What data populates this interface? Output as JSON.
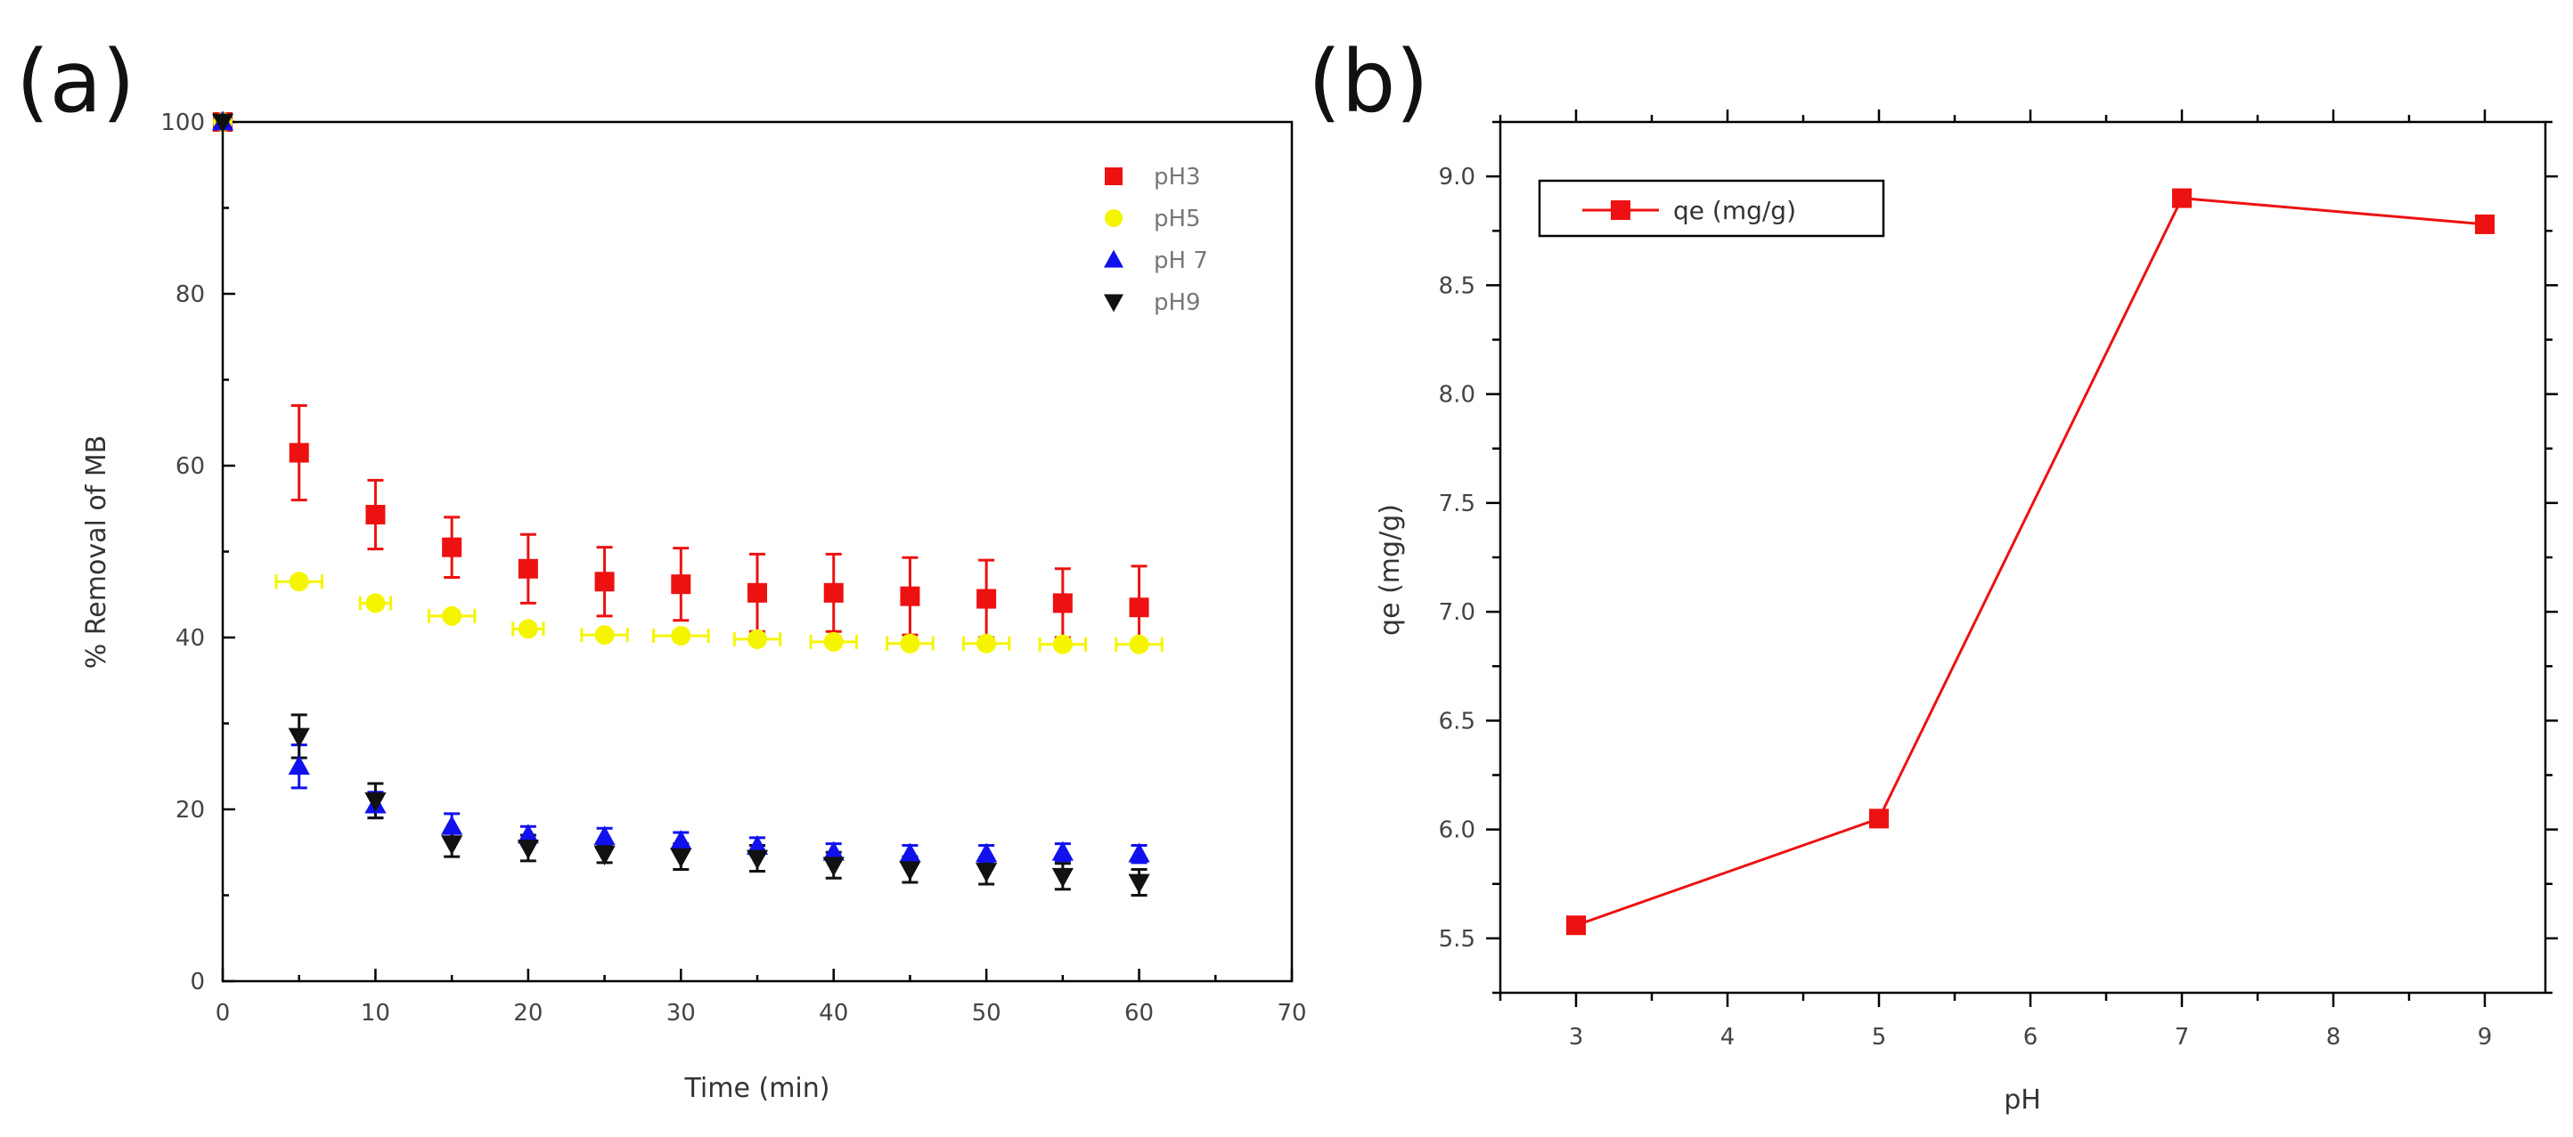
{
  "chart_data": [
    {
      "panel_label": "(a)",
      "type": "scatter",
      "xlabel": "Time (min)",
      "ylabel": "% Removal of MB",
      "xlim": [
        0,
        70
      ],
      "ylim": [
        0,
        100
      ],
      "xticks": [
        "0",
        "10",
        "20",
        "30",
        "40",
        "50",
        "60",
        "70"
      ],
      "yticks": [
        "0",
        "20",
        "40",
        "60",
        "80",
        "100"
      ],
      "x": [
        0,
        5,
        10,
        15,
        20,
        25,
        30,
        35,
        40,
        45,
        50,
        55,
        60
      ],
      "legend_position": "top-right",
      "series": [
        {
          "name": "pH3",
          "marker": "square",
          "color": "#ee1111",
          "values": [
            100,
            61.5,
            54.3,
            50.5,
            48.0,
            46.5,
            46.2,
            45.2,
            45.2,
            44.8,
            44.5,
            44.0,
            43.5
          ],
          "yerr": [
            0,
            5.5,
            4.0,
            3.5,
            4.0,
            4.0,
            4.2,
            4.5,
            4.5,
            4.5,
            4.5,
            4.0,
            4.8
          ]
        },
        {
          "name": "pH5",
          "marker": "circle",
          "color": "#f5f500",
          "values": [
            100,
            46.5,
            44.0,
            42.5,
            41.0,
            40.3,
            40.2,
            39.8,
            39.5,
            39.3,
            39.3,
            39.2,
            39.2
          ],
          "xerr": [
            0,
            1.5,
            1.0,
            1.5,
            1.0,
            1.5,
            1.8,
            1.5,
            1.5,
            1.5,
            1.5,
            1.5,
            1.5
          ]
        },
        {
          "name": "pH 7",
          "marker": "triangle-up",
          "color": "#1111ee",
          "values": [
            100,
            25.0,
            20.5,
            18.0,
            17.0,
            16.8,
            16.3,
            15.7,
            15.0,
            14.8,
            14.8,
            15.0,
            14.8
          ],
          "yerr": [
            0,
            2.5,
            1.5,
            1.5,
            1.0,
            1.0,
            1.0,
            1.0,
            1.0,
            1.0,
            1.0,
            1.0,
            1.0
          ]
        },
        {
          "name": "pH9",
          "marker": "triangle-down",
          "color": "#111111",
          "values": [
            100,
            28.5,
            21.0,
            16.0,
            15.5,
            14.8,
            14.5,
            14.3,
            13.5,
            13.0,
            12.8,
            12.2,
            11.5
          ],
          "yerr": [
            0,
            2.5,
            2.0,
            1.5,
            1.5,
            1.0,
            1.5,
            1.5,
            1.5,
            1.5,
            1.5,
            1.5,
            1.5
          ]
        }
      ]
    },
    {
      "panel_label": "(b)",
      "type": "line",
      "xlabel": "pH",
      "ylabel": "qe (mg/g)",
      "xlim": [
        2.5,
        9.4
      ],
      "ylim": [
        5.25,
        9.25
      ],
      "xticks": [
        "3",
        "4",
        "5",
        "6",
        "7",
        "8",
        "9"
      ],
      "yticks": [
        "5.5",
        "6.0",
        "6.5",
        "7.0",
        "7.5",
        "8.0",
        "8.5",
        "9.0"
      ],
      "legend_position": "top-left",
      "series": [
        {
          "name": "qe (mg/g)",
          "marker": "square",
          "color": "#ee1111",
          "x": [
            3,
            5,
            7,
            9
          ],
          "values": [
            5.56,
            6.05,
            8.9,
            8.78
          ]
        }
      ]
    }
  ]
}
